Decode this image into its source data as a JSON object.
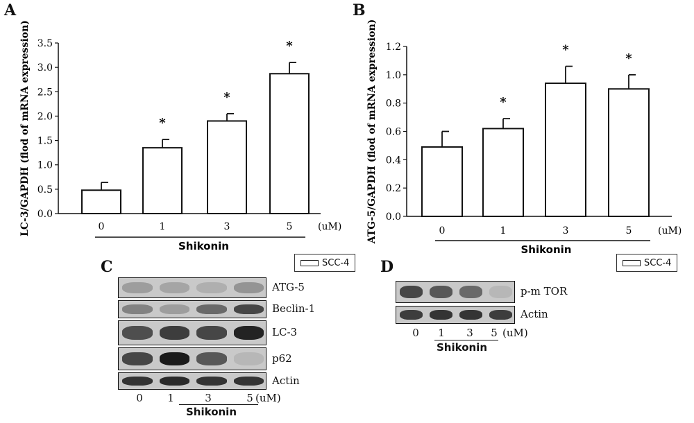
{
  "chart_data": [
    {
      "panel": "A",
      "type": "bar",
      "ylabel": "LC-3/GAPDH (flod of mRNA expression)",
      "categories": [
        "0",
        "1",
        "3",
        "5"
      ],
      "unit_label": "(uM)",
      "group_label": "Shikonin",
      "values": [
        0.48,
        1.35,
        1.9,
        2.87
      ],
      "errors": [
        0.16,
        0.17,
        0.15,
        0.23
      ],
      "significance": [
        "",
        "*",
        "*",
        "*"
      ],
      "ylim": [
        0,
        3.5
      ],
      "yticks": [
        "0.0",
        "0.5",
        "1.0",
        "1.5",
        "2.0",
        "2.5",
        "3.0",
        "3.5"
      ],
      "legend": "SCC-4"
    },
    {
      "panel": "B",
      "type": "bar",
      "ylabel": "ATG-5/GAPDH (flod of mRNA expression)",
      "categories": [
        "0",
        "1",
        "3",
        "5"
      ],
      "unit_label": "(uM)",
      "group_label": "Shikonin",
      "values": [
        0.49,
        0.62,
        0.94,
        0.9
      ],
      "errors": [
        0.11,
        0.07,
        0.12,
        0.1
      ],
      "significance": [
        "",
        "*",
        "*",
        "*"
      ],
      "ylim": [
        0,
        1.2
      ],
      "yticks": [
        "0.0",
        "0.2",
        "0.4",
        "0.6",
        "0.8",
        "1.0",
        "1.2"
      ],
      "legend": "SCC-4"
    }
  ],
  "blots": {
    "C": {
      "letter": "C",
      "rows": [
        {
          "label": "ATG-5",
          "intensity": [
            0.25,
            0.2,
            0.15,
            0.3
          ]
        },
        {
          "label": "Beclin-1",
          "intensity": [
            0.4,
            0.25,
            0.55,
            0.75
          ]
        },
        {
          "label": "LC-3",
          "intensity": [
            0.7,
            0.8,
            0.75,
            0.95
          ]
        },
        {
          "label": "p62",
          "intensity": [
            0.75,
            1.0,
            0.65,
            0.1
          ]
        },
        {
          "label": "Actin",
          "intensity": [
            0.85,
            0.9,
            0.85,
            0.85
          ]
        }
      ],
      "lanes": [
        "0",
        "1",
        "3",
        "5"
      ],
      "unit_label": "(uM)",
      "group_label": "Shikonin"
    },
    "D": {
      "letter": "D",
      "rows": [
        {
          "label": "p-m TOR",
          "intensity": [
            0.75,
            0.65,
            0.55,
            0.1
          ]
        },
        {
          "label": "Actin",
          "intensity": [
            0.8,
            0.85,
            0.85,
            0.8
          ]
        }
      ],
      "lanes": [
        "0",
        "1",
        "3",
        "5"
      ],
      "unit_label": "(uM)",
      "group_label": "Shikonin"
    }
  },
  "colors": {
    "bar_fill": "#ffffff",
    "bar_stroke": "#111111",
    "axis": "#111111",
    "band": "#1a1a1a",
    "blot_bg": "#c9c9c9"
  }
}
